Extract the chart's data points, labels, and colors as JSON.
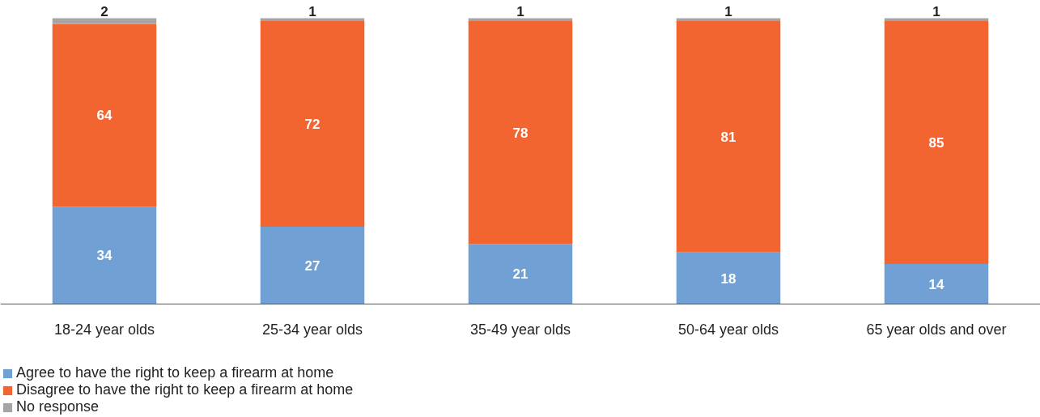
{
  "chart_data": {
    "type": "bar",
    "stacked": true,
    "categories": [
      "18-24 year olds",
      "25-34 year olds",
      "35-49 year olds",
      "50-64 year olds",
      "65 year olds and over"
    ],
    "series": [
      {
        "name": "Agree to have the right to keep a firearm at home",
        "color": "#70a0d4",
        "values": [
          34,
          27,
          21,
          18,
          14
        ]
      },
      {
        "name": "Disagree to have the right to keep a firearm at home",
        "color": "#f26531",
        "values": [
          64,
          72,
          78,
          81,
          85
        ]
      },
      {
        "name": "No response",
        "color": "#a5a5a5",
        "values": [
          2,
          1,
          1,
          1,
          1
        ]
      }
    ],
    "data_labels": true,
    "legend": "bottom left"
  }
}
